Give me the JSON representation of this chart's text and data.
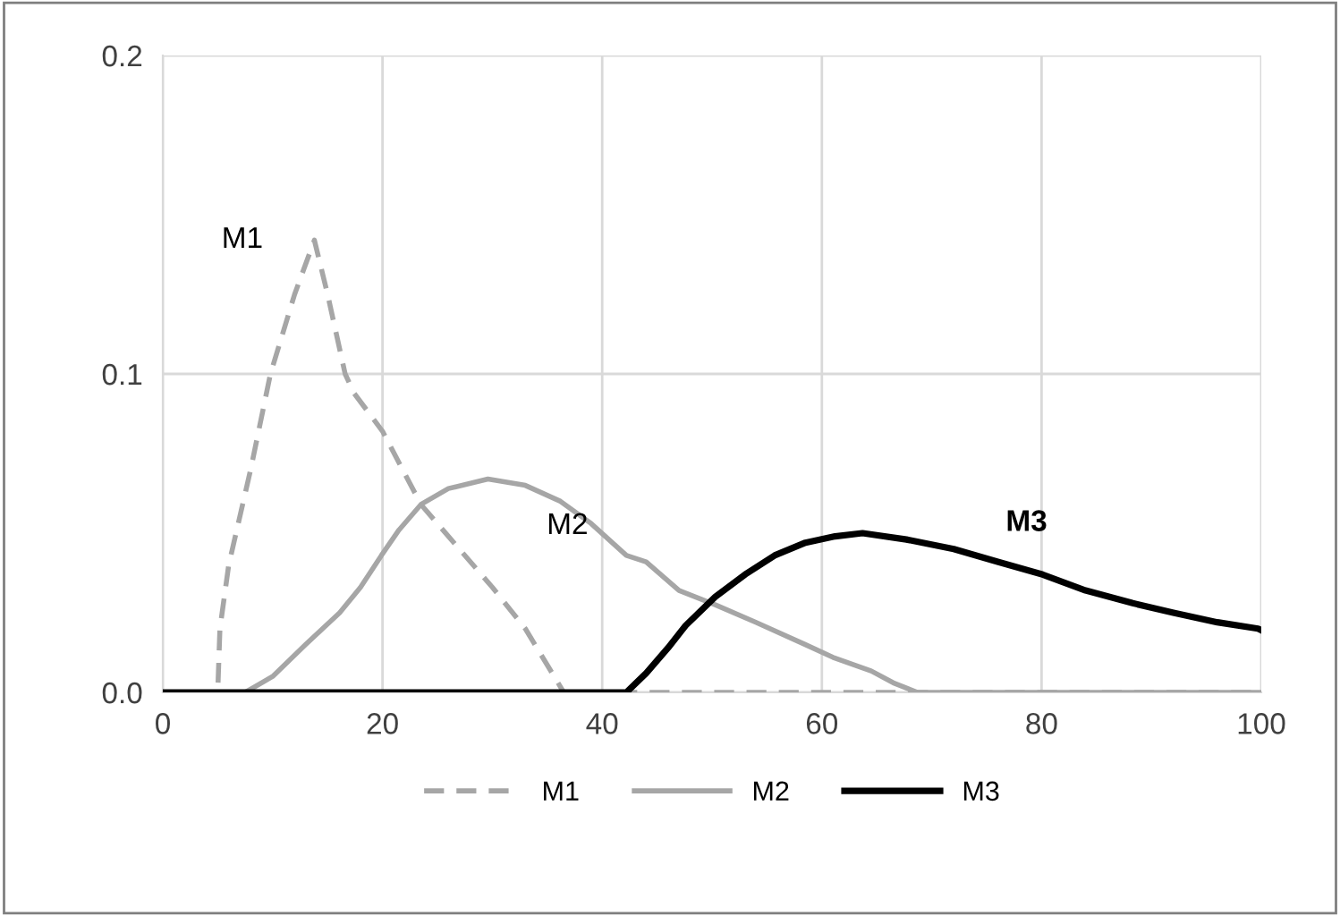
{
  "chart_data": {
    "type": "line",
    "xlim": [
      0,
      100
    ],
    "xticks": [
      0,
      20,
      40,
      60,
      80,
      100
    ],
    "ylim": [
      0,
      0.2
    ],
    "yticks": [
      {
        "value": 0,
        "label": "0.0"
      },
      {
        "value": 0.1,
        "label": "0.1"
      },
      {
        "value": 0.2,
        "label": "0.2"
      }
    ],
    "grid": true,
    "legend": "bottom",
    "marker": "none",
    "series": [
      {
        "name": "M1",
        "color": "#a6a6a6",
        "line_style": "dashed",
        "x": [
          0,
          5,
          5.2,
          6,
          8,
          9.8,
          12,
          13.8,
          15,
          16.6,
          17.4,
          20,
          23.5,
          27,
          30,
          33,
          36.5,
          50,
          70,
          100
        ],
        "values": [
          0,
          0,
          0.02,
          0.04,
          0.07,
          0.1,
          0.125,
          0.142,
          0.125,
          0.1,
          0.094,
          0.082,
          0.059,
          0.045,
          0.033,
          0.02,
          0,
          0,
          0,
          0
        ]
      },
      {
        "name": "M2",
        "color": "#a6a6a6",
        "line_style": "solid",
        "x": [
          0,
          7.5,
          10,
          13,
          16.1,
          18,
          19.9,
          21.5,
          23.5,
          26,
          29.6,
          33,
          36.2,
          39,
          42.2,
          44,
          47,
          50.3,
          54,
          58.5,
          61,
          64.5,
          66.5,
          68.7,
          100
        ],
        "values": [
          0,
          0,
          0.005,
          0.015,
          0.025,
          0.033,
          0.043,
          0.051,
          0.059,
          0.064,
          0.067,
          0.065,
          0.06,
          0.053,
          0.043,
          0.041,
          0.032,
          0.0275,
          0.022,
          0.015,
          0.011,
          0.0067,
          0.003,
          0,
          0
        ]
      },
      {
        "name": "M3",
        "color": "#000000",
        "line_style": "solid",
        "x": [
          0,
          42.2,
          44,
          46,
          47.6,
          50.3,
          53,
          55.7,
          58.5,
          61.2,
          63.7,
          67.7,
          72,
          76,
          80.1,
          84,
          88.3,
          92,
          96,
          99.7,
          100
        ],
        "values": [
          0,
          0,
          0.006,
          0.014,
          0.021,
          0.03,
          0.037,
          0.043,
          0.047,
          0.049,
          0.05,
          0.048,
          0.045,
          0.041,
          0.037,
          0.032,
          0.028,
          0.025,
          0.022,
          0.02,
          0.0195
        ]
      }
    ],
    "annotations": [
      "M1",
      "M2",
      "M3"
    ]
  }
}
